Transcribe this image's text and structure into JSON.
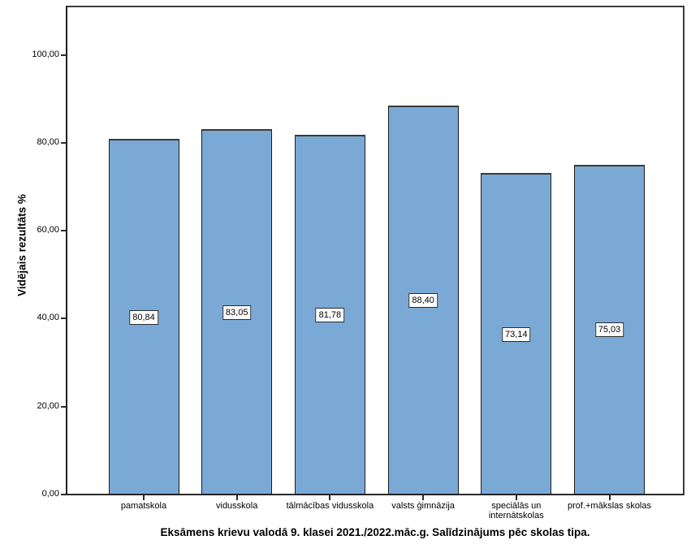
{
  "chart_data": {
    "type": "bar",
    "title": "Eksāmens krievu valodā 9. klasei 2021./2022.māc.g. Salīdzinājums pēc skolas tipa.",
    "ylabel": "Vidējais rezultāts %",
    "xlabel": "",
    "categories": [
      "pamatskola",
      "vidusskola",
      "tālmācības vidusskola",
      "valsts ģimnāzija",
      "speciālās un internātskolas",
      "prof.+mākslas skolas"
    ],
    "values": [
      80.84,
      83.05,
      81.78,
      88.4,
      73.14,
      75.03
    ],
    "value_labels": [
      "80,84",
      "83,05",
      "81,78",
      "88,40",
      "73,14",
      "75,03"
    ],
    "ytick_values": [
      0,
      20,
      40,
      60,
      80,
      100
    ],
    "ytick_labels": [
      "0,00",
      "20,00",
      "40,00",
      "60,00",
      "80,00",
      "100,00"
    ],
    "ylim": [
      0,
      111
    ],
    "grid": false,
    "legend": "none",
    "bar_fill_color": "#7aa9d6",
    "bar_border_color": "#1c1c1c",
    "frame_color": "#3c3c3c"
  }
}
